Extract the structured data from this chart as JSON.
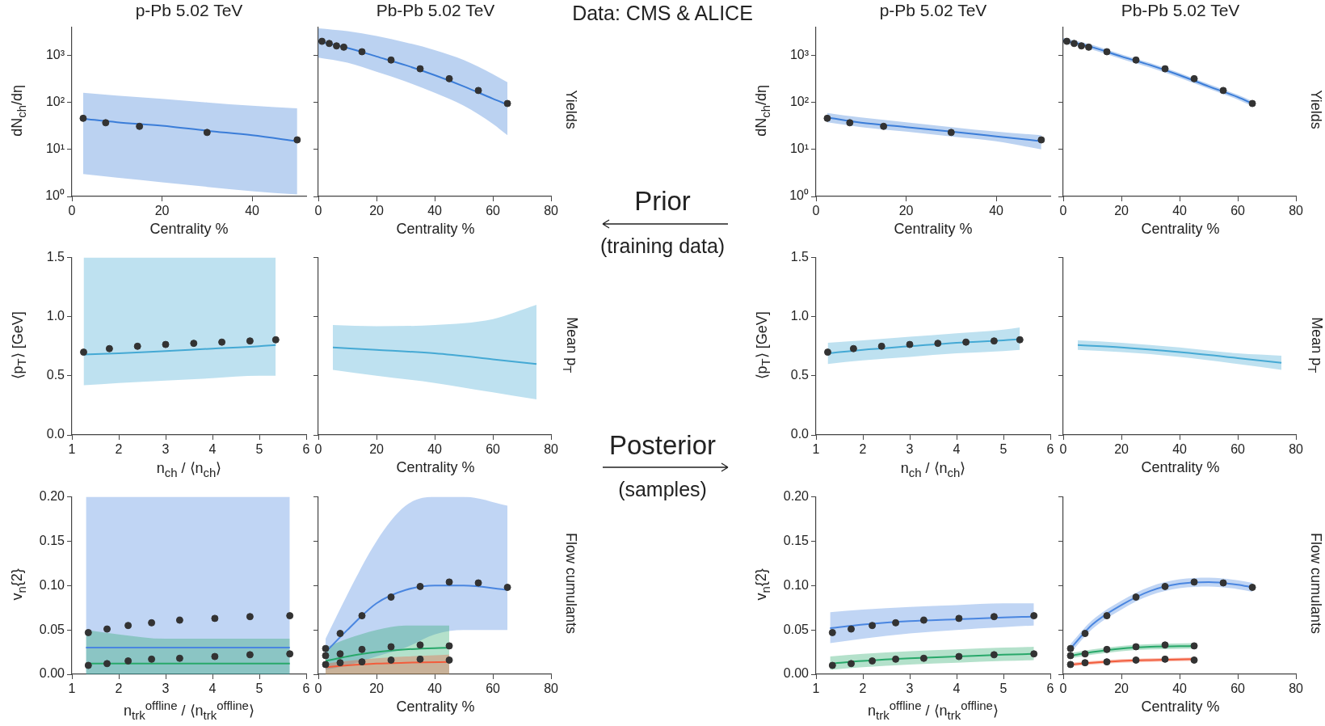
{
  "chart_data": [
    {
      "type": "line",
      "title": "p-Pb 5.02 TeV",
      "xlabel": "Centrality %",
      "ylabel": "dN$_{ch}$/dη",
      "log": "y",
      "xlim": [
        0,
        52
      ],
      "xticks": [
        0,
        20,
        40
      ],
      "ylim": [
        1,
        4000
      ],
      "yticks": [
        {
          "value": 1,
          "label": "10⁰"
        },
        {
          "value": 10,
          "label": "10¹"
        },
        {
          "value": 100,
          "label": "10²"
        },
        {
          "value": 1000,
          "label": "10³"
        }
      ],
      "series": [
        {
          "color": "#3b7dd8",
          "x": [
            2.5,
            10,
            20,
            30,
            40,
            50
          ],
          "values": [
            45,
            38,
            32,
            25,
            20,
            15
          ],
          "lower": [
            3,
            2.5,
            2,
            1.6,
            1.3,
            1.1
          ],
          "upper": [
            160,
            140,
            120,
            100,
            85,
            75
          ]
        },
        {
          "type": "scatter",
          "marker": "circle",
          "color": "#333333",
          "x": [
            2.5,
            7.5,
            15,
            30,
            50
          ],
          "values": [
            46,
            37,
            31,
            23,
            16
          ]
        }
      ]
    },
    {
      "type": "line",
      "title": "Pb-Pb 5.02 TeV",
      "xlabel": "Centrality %",
      "y2label": "Yields",
      "log": "y",
      "tick_labels": "x",
      "xlim": [
        0,
        80
      ],
      "xticks": [
        0,
        20,
        40,
        60,
        80
      ],
      "ylim": [
        1,
        4000
      ],
      "yticks": [
        {
          "value": 1,
          "label": null
        },
        {
          "value": 10,
          "label": null
        },
        {
          "value": 100,
          "label": null
        },
        {
          "value": 1000,
          "label": null
        }
      ],
      "series": [
        {
          "color": "#3b7dd8",
          "x": [
            0,
            10,
            20,
            30,
            40,
            50,
            60,
            65
          ],
          "values": [
            2000,
            1450,
            950,
            620,
            380,
            220,
            120,
            90
          ],
          "lower": [
            900,
            700,
            450,
            280,
            160,
            85,
            35,
            20
          ],
          "upper": [
            3800,
            3300,
            2600,
            1900,
            1300,
            800,
            400,
            270
          ]
        },
        {
          "type": "scatter",
          "marker": "circle",
          "color": "#333333",
          "x": [
            1.25,
            3.75,
            6.25,
            8.75,
            15,
            25,
            35,
            45,
            55,
            65
          ],
          "values": [
            2000,
            1800,
            1600,
            1500,
            1200,
            800,
            520,
            320,
            180,
            95
          ]
        }
      ]
    },
    {
      "type": "line",
      "title": "p-Pb 5.02 TeV",
      "xlabel": "Centrality %",
      "ylabel": "dN$_{ch}$/dη",
      "log": "y",
      "xlim": [
        0,
        52
      ],
      "xticks": [
        0,
        20,
        40
      ],
      "ylim": [
        1,
        4000
      ],
      "yticks": [
        {
          "value": 1,
          "label": "10⁰"
        },
        {
          "value": 10,
          "label": "10¹"
        },
        {
          "value": 100,
          "label": "10²"
        },
        {
          "value": 1000,
          "label": "10³"
        }
      ],
      "series": [
        {
          "color": "#3b7dd8",
          "x": [
            2.5,
            10,
            20,
            30,
            40,
            50
          ],
          "values": [
            48,
            37,
            30,
            24,
            19,
            15
          ],
          "lower": [
            38,
            30,
            24,
            19,
            15,
            10
          ],
          "upper": [
            60,
            48,
            38,
            30,
            24,
            20
          ]
        },
        {
          "type": "scatter",
          "marker": "circle",
          "color": "#333333",
          "x": [
            2.5,
            7.5,
            15,
            30,
            50
          ],
          "values": [
            46,
            37,
            31,
            23,
            16
          ]
        }
      ]
    },
    {
      "type": "line",
      "title": "Pb-Pb 5.02 TeV",
      "xlabel": "Centrality %",
      "y2label": "Yields",
      "log": "y",
      "tick_labels": "x",
      "xlim": [
        0,
        80
      ],
      "xticks": [
        0,
        20,
        40,
        60,
        80
      ],
      "ylim": [
        1,
        4000
      ],
      "yticks": [
        {
          "value": 1,
          "label": null
        },
        {
          "value": 10,
          "label": null
        },
        {
          "value": 100,
          "label": null
        },
        {
          "value": 1000,
          "label": null
        }
      ],
      "series": [
        {
          "color": "#3b7dd8",
          "x": [
            0,
            10,
            20,
            30,
            40,
            50,
            60,
            65
          ],
          "values": [
            2100,
            1500,
            950,
            620,
            380,
            220,
            130,
            95
          ],
          "lower": [
            1850,
            1320,
            840,
            550,
            335,
            195,
            115,
            84
          ],
          "upper": [
            2350,
            1680,
            1060,
            690,
            425,
            245,
            145,
            106
          ]
        },
        {
          "type": "scatter",
          "marker": "circle",
          "color": "#333333",
          "x": [
            1.25,
            3.75,
            6.25,
            8.75,
            15,
            25,
            35,
            45,
            55,
            65
          ],
          "values": [
            2000,
            1800,
            1600,
            1500,
            1200,
            800,
            520,
            320,
            180,
            95
          ]
        }
      ]
    },
    {
      "type": "line",
      "xlabel": "n$_{ch}$ / ⟨n$_{ch}$⟩",
      "ylabel": "⟨p$_{T}$⟩ [GeV]",
      "xlim": [
        1,
        6
      ],
      "xticks": [
        1,
        2,
        3,
        4,
        5,
        6
      ],
      "ylim": [
        0,
        1.5
      ],
      "yticks": [
        {
          "value": 0,
          "label": "0.0"
        },
        {
          "value": 0.5,
          "label": "0.5"
        },
        {
          "value": 1,
          "label": "1.0"
        },
        {
          "value": 1.5,
          "label": "1.5"
        }
      ],
      "series": [
        {
          "color": "#45a9d4",
          "x": [
            1.25,
            2,
            3,
            4,
            5,
            5.35
          ],
          "values": [
            0.68,
            0.69,
            0.71,
            0.73,
            0.75,
            0.76
          ],
          "lower": [
            0.42,
            0.44,
            0.46,
            0.48,
            0.5,
            0.5
          ],
          "upper": [
            1.5,
            1.5,
            1.5,
            1.5,
            1.5,
            1.5
          ]
        },
        {
          "type": "scatter",
          "marker": "circle",
          "color": "#333333",
          "x": [
            1.25,
            1.8,
            2.4,
            3,
            3.6,
            4.2,
            4.8,
            5.35
          ],
          "values": [
            0.7,
            0.73,
            0.75,
            0.765,
            0.775,
            0.785,
            0.795,
            0.805
          ]
        }
      ]
    },
    {
      "type": "line",
      "xlabel": "Centrality %",
      "y2label": "Mean p$_{T}$",
      "tick_labels": "x",
      "xlim": [
        0,
        80
      ],
      "xticks": [
        0,
        20,
        40,
        60,
        80
      ],
      "ylim": [
        0,
        1.5
      ],
      "yticks": [
        {
          "value": 0,
          "label": null
        },
        {
          "value": 0.5,
          "label": null
        },
        {
          "value": 1,
          "label": null
        },
        {
          "value": 1.5,
          "label": null
        }
      ],
      "series": [
        {
          "color": "#45a9d4",
          "x": [
            5,
            20,
            40,
            60,
            75
          ],
          "values": [
            0.74,
            0.72,
            0.69,
            0.64,
            0.6
          ],
          "lower": [
            0.55,
            0.5,
            0.44,
            0.36,
            0.3
          ],
          "upper": [
            0.93,
            0.92,
            0.93,
            0.98,
            1.1
          ]
        }
      ]
    },
    {
      "type": "line",
      "xlabel": "n$_{ch}$ / ⟨n$_{ch}$⟩",
      "ylabel": "⟨p$_{T}$⟩ [GeV]",
      "xlim": [
        1,
        6
      ],
      "xticks": [
        1,
        2,
        3,
        4,
        5,
        6
      ],
      "ylim": [
        0,
        1.5
      ],
      "yticks": [
        {
          "value": 0,
          "label": "0.0"
        },
        {
          "value": 0.5,
          "label": "0.5"
        },
        {
          "value": 1,
          "label": "1.0"
        },
        {
          "value": 1.5,
          "label": "1.5"
        }
      ],
      "series": [
        {
          "color": "#45a9d4",
          "x": [
            1.25,
            2,
            3,
            4,
            5,
            5.35
          ],
          "values": [
            0.69,
            0.72,
            0.75,
            0.78,
            0.8,
            0.81
          ],
          "lower": [
            0.6,
            0.63,
            0.66,
            0.69,
            0.71,
            0.72
          ],
          "upper": [
            0.78,
            0.8,
            0.83,
            0.86,
            0.89,
            0.91
          ]
        },
        {
          "type": "scatter",
          "marker": "circle",
          "color": "#333333",
          "x": [
            1.25,
            1.8,
            2.4,
            3,
            3.6,
            4.2,
            4.8,
            5.35
          ],
          "values": [
            0.7,
            0.73,
            0.75,
            0.765,
            0.775,
            0.785,
            0.795,
            0.805
          ]
        }
      ]
    },
    {
      "type": "line",
      "xlabel": "Centrality %",
      "y2label": "Mean p$_{T}$",
      "tick_labels": "x",
      "xlim": [
        0,
        80
      ],
      "xticks": [
        0,
        20,
        40,
        60,
        80
      ],
      "ylim": [
        0,
        1.5
      ],
      "yticks": [
        {
          "value": 0,
          "label": null
        },
        {
          "value": 0.5,
          "label": null
        },
        {
          "value": 1,
          "label": null
        },
        {
          "value": 1.5,
          "label": null
        }
      ],
      "series": [
        {
          "color": "#45a9d4",
          "x": [
            5,
            20,
            40,
            60,
            75
          ],
          "values": [
            0.76,
            0.74,
            0.7,
            0.65,
            0.61
          ],
          "lower": [
            0.72,
            0.7,
            0.66,
            0.6,
            0.55
          ],
          "upper": [
            0.8,
            0.78,
            0.74,
            0.69,
            0.67
          ]
        }
      ]
    },
    {
      "type": "line",
      "xlabel": "n$_{trk}$$^{offline}$ / ⟨n$_{trk}$$^{offline}$⟩",
      "ylabel": "v$_{n}${2}",
      "xlim": [
        1,
        6
      ],
      "xticks": [
        1,
        2,
        3,
        4,
        5,
        6
      ],
      "ylim": [
        0,
        0.2
      ],
      "yticks": [
        {
          "value": 0,
          "label": "0.00"
        },
        {
          "value": 0.05,
          "label": "0.05"
        },
        {
          "value": 0.1,
          "label": "0.10"
        },
        {
          "value": 0.15,
          "label": "0.15"
        },
        {
          "value": 0.2,
          "label": "0.20"
        }
      ],
      "series": [
        {
          "color": "#4a86e0",
          "x": [
            1.3,
            2,
            3,
            4,
            5,
            5.65
          ],
          "values": [
            0.03,
            0.03,
            0.03,
            0.03,
            0.03,
            0.03
          ],
          "lower": [
            0,
            0,
            0,
            0,
            0,
            0
          ],
          "upper": [
            0.2,
            0.2,
            0.2,
            0.2,
            0.2,
            0.2
          ]
        },
        {
          "color": "#28a86a",
          "x": [
            1.3,
            2,
            3,
            4,
            5,
            5.65
          ],
          "values": [
            0.012,
            0.012,
            0.012,
            0.012,
            0.012,
            0.012
          ],
          "lower": [
            0,
            0,
            0,
            0,
            0,
            0
          ],
          "upper": [
            0.05,
            0.045,
            0.04,
            0.04,
            0.04,
            0.04
          ]
        },
        {
          "type": "scatter",
          "marker": "circle",
          "color": "#333333",
          "x": [
            1.35,
            1.75,
            2.2,
            2.7,
            3.3,
            4.05,
            4.8,
            5.65
          ],
          "values": [
            0.047,
            0.051,
            0.055,
            0.058,
            0.061,
            0.063,
            0.065,
            0.066
          ]
        },
        {
          "type": "scatter",
          "marker": "circle",
          "color": "#333333",
          "x": [
            1.35,
            1.75,
            2.2,
            2.7,
            3.3,
            4.05,
            4.8,
            5.65
          ],
          "values": [
            0.01,
            0.012,
            0.015,
            0.017,
            0.018,
            0.02,
            0.022,
            0.023
          ]
        }
      ]
    },
    {
      "type": "line",
      "xlabel": "Centrality %",
      "y2label": "Flow cumulants",
      "tick_labels": "x",
      "xlim": [
        0,
        80
      ],
      "xticks": [
        0,
        20,
        40,
        60,
        80
      ],
      "ylim": [
        0,
        0.2
      ],
      "yticks": [
        {
          "value": 0,
          "label": null
        },
        {
          "value": 0.05,
          "label": null
        },
        {
          "value": 0.1,
          "label": null
        },
        {
          "value": 0.15,
          "label": null
        },
        {
          "value": 0.2,
          "label": null
        }
      ],
      "series": [
        {
          "color": "#4a86e0",
          "x": [
            2.5,
            10,
            20,
            30,
            40,
            50,
            65
          ],
          "values": [
            0.025,
            0.05,
            0.08,
            0.095,
            0.1,
            0.1,
            0.095
          ],
          "lower": [
            0.005,
            0.01,
            0.02,
            0.03,
            0.045,
            0.05,
            0.05
          ],
          "upper": [
            0.04,
            0.09,
            0.15,
            0.19,
            0.2,
            0.2,
            0.19
          ]
        },
        {
          "color": "#28a86a",
          "x": [
            2.5,
            10,
            20,
            30,
            45
          ],
          "values": [
            0.015,
            0.02,
            0.025,
            0.028,
            0.03
          ],
          "lower": [
            0,
            0,
            0,
            0,
            0
          ],
          "upper": [
            0.03,
            0.04,
            0.05,
            0.055,
            0.055
          ]
        },
        {
          "color": "#f25c3c",
          "x": [
            2.5,
            10,
            20,
            30,
            45
          ],
          "values": [
            0.008,
            0.01,
            0.012,
            0.013,
            0.014
          ],
          "lower": [
            0,
            0,
            0,
            0,
            0
          ],
          "upper": [
            0.012,
            0.015,
            0.018,
            0.02,
            0.022
          ]
        },
        {
          "type": "scatter",
          "marker": "circle",
          "color": "#333333",
          "x": [
            2.5,
            7.5,
            15,
            25,
            35,
            45,
            55,
            65
          ],
          "values": [
            0.029,
            0.046,
            0.066,
            0.087,
            0.099,
            0.104,
            0.103,
            0.098
          ]
        },
        {
          "type": "scatter",
          "marker": "circle",
          "color": "#333333",
          "x": [
            2.5,
            7.5,
            15,
            25,
            35,
            45
          ],
          "values": [
            0.021,
            0.023,
            0.028,
            0.031,
            0.033,
            0.032
          ]
        },
        {
          "type": "scatter",
          "marker": "circle",
          "color": "#333333",
          "x": [
            2.5,
            7.5,
            15,
            25,
            35,
            45
          ],
          "values": [
            0.011,
            0.013,
            0.014,
            0.016,
            0.017,
            0.016
          ]
        }
      ]
    },
    {
      "type": "line",
      "xlabel": "n$_{trk}$$^{offline}$ / ⟨n$_{trk}$$^{offline}$⟩",
      "ylabel": "v$_{n}${2}",
      "xlim": [
        1,
        6
      ],
      "xticks": [
        1,
        2,
        3,
        4,
        5,
        6
      ],
      "ylim": [
        0,
        0.2
      ],
      "yticks": [
        {
          "value": 0,
          "label": "0.00"
        },
        {
          "value": 0.05,
          "label": "0.05"
        },
        {
          "value": 0.1,
          "label": "0.10"
        },
        {
          "value": 0.15,
          "label": "0.15"
        },
        {
          "value": 0.2,
          "label": "0.20"
        }
      ],
      "series": [
        {
          "color": "#4a86e0",
          "x": [
            1.3,
            2,
            3,
            4,
            5,
            5.65
          ],
          "values": [
            0.052,
            0.056,
            0.06,
            0.062,
            0.064,
            0.065
          ],
          "lower": [
            0.035,
            0.04,
            0.046,
            0.05,
            0.053,
            0.055
          ],
          "upper": [
            0.07,
            0.073,
            0.076,
            0.078,
            0.08,
            0.08
          ]
        },
        {
          "color": "#28a86a",
          "x": [
            1.3,
            2,
            3,
            4,
            5,
            5.65
          ],
          "values": [
            0.012,
            0.015,
            0.018,
            0.02,
            0.022,
            0.023
          ],
          "lower": [
            0.005,
            0.008,
            0.011,
            0.013,
            0.015,
            0.016
          ],
          "upper": [
            0.02,
            0.023,
            0.026,
            0.028,
            0.03,
            0.031
          ]
        },
        {
          "type": "scatter",
          "marker": "circle",
          "color": "#333333",
          "x": [
            1.35,
            1.75,
            2.2,
            2.7,
            3.3,
            4.05,
            4.8,
            5.65
          ],
          "values": [
            0.047,
            0.051,
            0.055,
            0.058,
            0.061,
            0.063,
            0.065,
            0.066
          ]
        },
        {
          "type": "scatter",
          "marker": "circle",
          "color": "#333333",
          "x": [
            1.35,
            1.75,
            2.2,
            2.7,
            3.3,
            4.05,
            4.8,
            5.65
          ],
          "values": [
            0.01,
            0.012,
            0.015,
            0.017,
            0.018,
            0.02,
            0.022,
            0.023
          ]
        }
      ]
    },
    {
      "type": "line",
      "xlabel": "Centrality %",
      "y2label": "Flow cumulants",
      "tick_labels": "x",
      "xlim": [
        0,
        80
      ],
      "xticks": [
        0,
        20,
        40,
        60,
        80
      ],
      "ylim": [
        0,
        0.2
      ],
      "yticks": [
        {
          "value": 0,
          "label": null
        },
        {
          "value": 0.05,
          "label": null
        },
        {
          "value": 0.1,
          "label": null
        },
        {
          "value": 0.15,
          "label": null
        },
        {
          "value": 0.2,
          "label": null
        }
      ],
      "series": [
        {
          "color": "#4a86e0",
          "x": [
            2.5,
            10,
            20,
            30,
            40,
            50,
            60,
            65
          ],
          "values": [
            0.029,
            0.056,
            0.078,
            0.094,
            0.102,
            0.104,
            0.101,
            0.098
          ],
          "lower": [
            0.024,
            0.051,
            0.073,
            0.089,
            0.097,
            0.099,
            0.096,
            0.093
          ],
          "upper": [
            0.034,
            0.061,
            0.083,
            0.099,
            0.107,
            0.109,
            0.106,
            0.103
          ]
        },
        {
          "color": "#28a86a",
          "x": [
            2.5,
            10,
            20,
            30,
            45
          ],
          "values": [
            0.021,
            0.025,
            0.029,
            0.031,
            0.032
          ],
          "lower": [
            0.018,
            0.022,
            0.026,
            0.028,
            0.029
          ],
          "upper": [
            0.024,
            0.028,
            0.032,
            0.034,
            0.035
          ]
        },
        {
          "color": "#f25c3c",
          "x": [
            2.5,
            10,
            20,
            30,
            45
          ],
          "values": [
            0.011,
            0.013,
            0.015,
            0.016,
            0.017
          ],
          "lower": [
            0.009,
            0.011,
            0.013,
            0.014,
            0.015
          ],
          "upper": [
            0.013,
            0.015,
            0.017,
            0.018,
            0.019
          ]
        },
        {
          "type": "scatter",
          "marker": "circle",
          "color": "#333333",
          "x": [
            2.5,
            7.5,
            15,
            25,
            35,
            45,
            55,
            65
          ],
          "values": [
            0.029,
            0.046,
            0.066,
            0.087,
            0.099,
            0.104,
            0.103,
            0.098
          ]
        },
        {
          "type": "scatter",
          "marker": "circle",
          "color": "#333333",
          "x": [
            2.5,
            7.5,
            15,
            25,
            35,
            45
          ],
          "values": [
            0.021,
            0.023,
            0.028,
            0.031,
            0.033,
            0.032
          ]
        },
        {
          "type": "scatter",
          "marker": "circle",
          "color": "#333333",
          "x": [
            2.5,
            7.5,
            15,
            25,
            35,
            45
          ],
          "values": [
            0.011,
            0.013,
            0.014,
            0.016,
            0.017,
            0.016
          ]
        }
      ]
    },
    {
      "type": "other",
      "title": "Data: CMS & ALICE",
      "annotations": [
        "Prior",
        "(training data)",
        "Posterior",
        "(samples)"
      ]
    }
  ]
}
